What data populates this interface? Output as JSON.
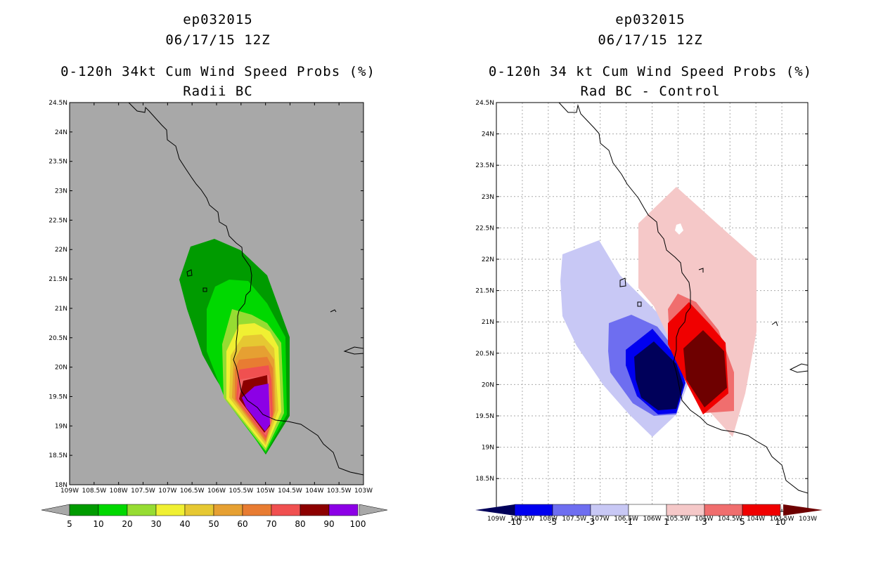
{
  "left_panel": {
    "storm_id": "ep032015",
    "datetime": "06/17/15 12Z",
    "product": "0-120h 34kt Cum Wind Speed Probs (%)",
    "subtitle": "Radii BC",
    "lat_ticks": [
      "24.5N",
      "24N",
      "23.5N",
      "23N",
      "22.5N",
      "22N",
      "21.5N",
      "21N",
      "20.5N",
      "20N",
      "19.5N",
      "19N",
      "18.5N",
      "18N"
    ],
    "lon_ticks": [
      "109W",
      "108.5W",
      "108W",
      "107.5W",
      "107W",
      "106.5W",
      "106W",
      "105.5W",
      "105W",
      "104.5W",
      "104W",
      "103.5W",
      "103W"
    ],
    "colorbar": {
      "labels": [
        "5",
        "10",
        "20",
        "30",
        "40",
        "50",
        "60",
        "70",
        "80",
        "90",
        "100"
      ],
      "colors": [
        "#009b00",
        "#00d800",
        "#96dc32",
        "#f0f032",
        "#e6c832",
        "#e6a032",
        "#e87c32",
        "#f05050",
        "#8c0000",
        "#8c00e6"
      ]
    }
  },
  "right_panel": {
    "storm_id": "ep032015",
    "datetime": "06/17/15 12Z",
    "product": "0-120h 34 kt Cum Wind Speed Probs (%)",
    "subtitle": "Rad BC - Control",
    "lat_ticks": [
      "24.5N",
      "24N",
      "23.5N",
      "23N",
      "22.5N",
      "22N",
      "21.5N",
      "21N",
      "20.5N",
      "20N",
      "19.5N",
      "19N",
      "18.5N"
    ],
    "lon_ticks": [
      "109W",
      "108.5W",
      "108W",
      "107.5W",
      "107W",
      "106.5W",
      "106W",
      "105.5W",
      "105W",
      "104.5W",
      "104W",
      "103.5W",
      "103W"
    ],
    "colorbar": {
      "labels": [
        "-10",
        "-5",
        "-3",
        "-1",
        "1",
        "3",
        "5",
        "10"
      ],
      "colors": [
        "#00005a",
        "#0000f0",
        "#6e6ef0",
        "#c8c8f5",
        "#ffffff",
        "#f5c8c8",
        "#f06e6e",
        "#f00000",
        "#6e0000"
      ]
    }
  },
  "colors": {
    "land_sea_bg": "#a8a8a8",
    "coast": "#000000",
    "grid": "#aaaaaa"
  }
}
